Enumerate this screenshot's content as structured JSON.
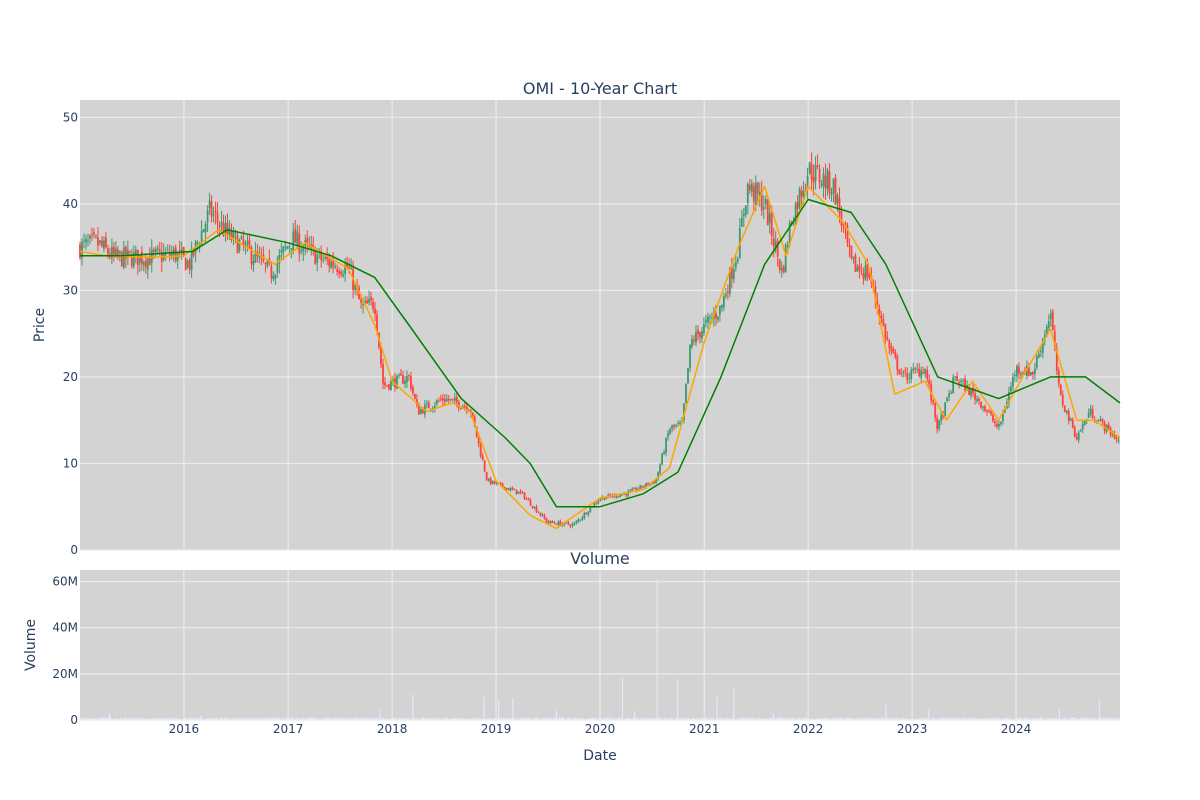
{
  "chart_data": [
    {
      "type": "candlestick",
      "title": "OMI - 10-Year Chart",
      "xlabel": "",
      "ylabel": "Price",
      "ylim": [
        0,
        52
      ],
      "yticks": [
        0,
        10,
        20,
        30,
        40,
        50
      ],
      "xlim": [
        "2015-01-01",
        "2024-12-31"
      ],
      "grid": true,
      "background": "#d3d3d3",
      "colors": {
        "increasing": "#3d9970",
        "decreasing": "#ff4136",
        "ma_short": "#ffa500",
        "ma_long": "#008000"
      },
      "series": [
        {
          "kind": "close_path",
          "points": [
            [
              "2015-01-01",
              35.0
            ],
            [
              "2015-03-01",
              35.5
            ],
            [
              "2015-05-01",
              33.8
            ],
            [
              "2015-09-01",
              33.8
            ],
            [
              "2015-12-01",
              34.2
            ],
            [
              "2016-01-20",
              33.0
            ],
            [
              "2016-04-01",
              39.2
            ],
            [
              "2016-06-01",
              36.5
            ],
            [
              "2016-09-01",
              34.0
            ],
            [
              "2016-11-01",
              32.0
            ],
            [
              "2017-01-15",
              36.0
            ],
            [
              "2017-05-01",
              33.5
            ],
            [
              "2017-08-01",
              32.5
            ],
            [
              "2017-09-15",
              28.0
            ],
            [
              "2017-11-01",
              28.5
            ],
            [
              "2017-12-01",
              19.0
            ],
            [
              "2018-03-01",
              20.0
            ],
            [
              "2018-04-01",
              16.0
            ],
            [
              "2018-07-01",
              17.5
            ],
            [
              "2018-10-01",
              16.5
            ],
            [
              "2018-12-01",
              8.0
            ],
            [
              "2019-04-01",
              6.5
            ],
            [
              "2019-07-01",
              3.2
            ],
            [
              "2019-10-01",
              2.9
            ],
            [
              "2020-01-01",
              6.0
            ],
            [
              "2020-04-01",
              6.5
            ],
            [
              "2020-07-15",
              8.0
            ],
            [
              "2020-09-01",
              14.0
            ],
            [
              "2020-10-15",
              14.5
            ],
            [
              "2020-11-15",
              24.0
            ],
            [
              "2021-03-01",
              28.0
            ],
            [
              "2021-05-01",
              35.0
            ],
            [
              "2021-06-01",
              42.0
            ],
            [
              "2021-08-01",
              40.0
            ],
            [
              "2021-10-01",
              32.0
            ],
            [
              "2021-11-01",
              38.0
            ],
            [
              "2022-01-01",
              44.0
            ],
            [
              "2022-04-01",
              42.0
            ],
            [
              "2022-06-01",
              33.0
            ],
            [
              "2022-08-01",
              32.0
            ],
            [
              "2022-10-15",
              23.0
            ],
            [
              "2022-12-01",
              20.0
            ],
            [
              "2023-02-15",
              21.0
            ],
            [
              "2023-04-01",
              14.0
            ],
            [
              "2023-06-01",
              20.0
            ],
            [
              "2023-09-01",
              17.0
            ],
            [
              "2023-11-01",
              14.0
            ],
            [
              "2024-01-01",
              21.0
            ],
            [
              "2024-03-01",
              20.5
            ],
            [
              "2024-05-01",
              27.5
            ],
            [
              "2024-06-01",
              18.0
            ],
            [
              "2024-08-01",
              13.0
            ],
            [
              "2024-09-15",
              16.0
            ],
            [
              "2024-12-31",
              12.5
            ]
          ]
        },
        {
          "kind": "moving_average_short",
          "points": [
            [
              "2015-01-01",
              34.5
            ],
            [
              "2015-04-01",
              34.0
            ],
            [
              "2015-09-01",
              33.8
            ],
            [
              "2016-01-01",
              34.0
            ],
            [
              "2016-05-01",
              37.0
            ],
            [
              "2016-09-01",
              34.5
            ],
            [
              "2016-11-15",
              33.0
            ],
            [
              "2017-03-01",
              35.5
            ],
            [
              "2017-08-01",
              32.5
            ],
            [
              "2017-11-01",
              26.0
            ],
            [
              "2018-01-01",
              19.5
            ],
            [
              "2018-05-01",
              16.0
            ],
            [
              "2018-08-01",
              17.0
            ],
            [
              "2018-10-01",
              16.0
            ],
            [
              "2019-01-01",
              8.0
            ],
            [
              "2019-05-01",
              4.0
            ],
            [
              "2019-08-01",
              2.5
            ],
            [
              "2020-01-01",
              6.0
            ],
            [
              "2020-06-01",
              7.0
            ],
            [
              "2020-09-01",
              9.5
            ],
            [
              "2021-01-01",
              24.0
            ],
            [
              "2021-05-01",
              35.0
            ],
            [
              "2021-08-01",
              42.0
            ],
            [
              "2021-10-15",
              34.0
            ],
            [
              "2022-01-01",
              42.0
            ],
            [
              "2022-05-01",
              38.0
            ],
            [
              "2022-08-01",
              33.0
            ],
            [
              "2022-11-01",
              18.0
            ],
            [
              "2023-02-15",
              19.5
            ],
            [
              "2023-05-01",
              15.0
            ],
            [
              "2023-08-01",
              19.5
            ],
            [
              "2023-11-01",
              15.0
            ],
            [
              "2024-02-01",
              20.5
            ],
            [
              "2024-05-01",
              25.5
            ],
            [
              "2024-08-01",
              15.0
            ],
            [
              "2024-10-01",
              15.0
            ],
            [
              "2024-12-31",
              13.0
            ]
          ]
        },
        {
          "kind": "moving_average_long",
          "points": [
            [
              "2015-01-01",
              34.0
            ],
            [
              "2015-06-01",
              34.0
            ],
            [
              "2016-02-01",
              34.5
            ],
            [
              "2016-06-01",
              37.0
            ],
            [
              "2017-01-01",
              35.5
            ],
            [
              "2017-06-01",
              34.0
            ],
            [
              "2017-11-01",
              31.5
            ],
            [
              "2018-03-01",
              26.0
            ],
            [
              "2018-09-01",
              17.5
            ],
            [
              "2019-02-01",
              13.0
            ],
            [
              "2019-05-01",
              10.0
            ],
            [
              "2019-08-01",
              5.0
            ],
            [
              "2020-01-01",
              5.0
            ],
            [
              "2020-06-01",
              6.5
            ],
            [
              "2020-10-01",
              9.0
            ],
            [
              "2021-03-01",
              20.0
            ],
            [
              "2021-08-01",
              33.0
            ],
            [
              "2022-01-01",
              40.5
            ],
            [
              "2022-06-01",
              39.0
            ],
            [
              "2022-10-01",
              33.0
            ],
            [
              "2023-04-01",
              20.0
            ],
            [
              "2023-11-01",
              17.5
            ],
            [
              "2024-05-01",
              20.0
            ],
            [
              "2024-09-01",
              20.0
            ],
            [
              "2024-12-31",
              17.0
            ]
          ]
        }
      ]
    },
    {
      "type": "bar",
      "title": "Volume",
      "xlabel": "Date",
      "ylabel": "Volume",
      "ylim": [
        0,
        65000000
      ],
      "yticks": [
        0,
        20000000,
        40000000,
        60000000
      ],
      "ytick_labels": [
        "0",
        "20M",
        "40M",
        "60M"
      ],
      "xticks": [
        "2016-01-01",
        "2017-01-01",
        "2018-01-01",
        "2019-01-01",
        "2020-01-01",
        "2021-01-01",
        "2022-01-01",
        "2023-01-01",
        "2024-01-01"
      ],
      "xtick_labels": [
        "2016",
        "2017",
        "2018",
        "2019",
        "2020",
        "2021",
        "2022",
        "2023",
        "2024"
      ],
      "grid": true,
      "background": "#d3d3d3",
      "bar_color": "#e8e8f7",
      "spikes": [
        [
          "2015-04-15",
          3000000
        ],
        [
          "2016-03-01",
          2000000
        ],
        [
          "2017-11-20",
          4500000
        ],
        [
          "2018-03-15",
          11000000
        ],
        [
          "2018-11-20",
          10000000
        ],
        [
          "2019-01-10",
          8500000
        ],
        [
          "2019-03-01",
          9500000
        ],
        [
          "2019-08-01",
          4000000
        ],
        [
          "2020-03-20",
          18500000
        ],
        [
          "2020-05-01",
          4000000
        ],
        [
          "2020-07-20",
          61000000
        ],
        [
          "2020-09-30",
          17500000
        ],
        [
          "2021-02-15",
          10000000
        ],
        [
          "2021-04-15",
          13500000
        ],
        [
          "2021-09-01",
          3000000
        ],
        [
          "2022-10-01",
          7000000
        ],
        [
          "2023-03-01",
          5000000
        ],
        [
          "2024-06-01",
          5000000
        ],
        [
          "2024-10-20",
          8500000
        ]
      ]
    }
  ]
}
